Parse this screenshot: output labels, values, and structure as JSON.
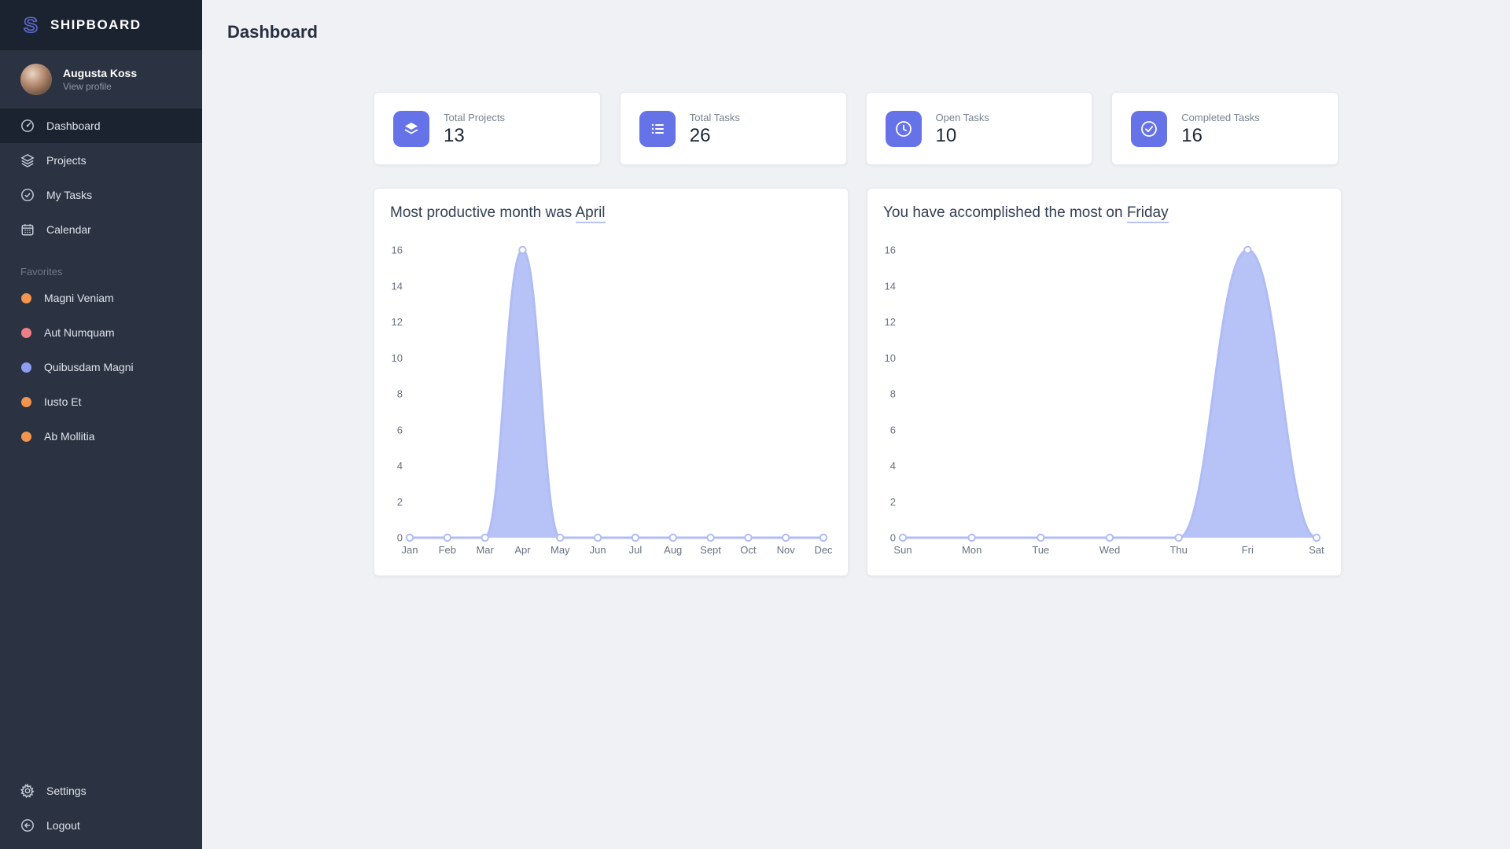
{
  "app": {
    "name": "SHIPBOARD"
  },
  "colors": {
    "accent": "#6673e8",
    "area_fill": "#b7c2f6",
    "area_line": "#b0bcf4",
    "sidebar_bg": "#2b3342",
    "sidebar_dark": "#1c2330"
  },
  "sidebar": {
    "user": {
      "name": "Augusta Koss",
      "action": "View profile"
    },
    "nav": [
      {
        "label": "Dashboard",
        "icon": "dashboard-icon",
        "active": true
      },
      {
        "label": "Projects",
        "icon": "layers-icon",
        "active": false
      },
      {
        "label": "My Tasks",
        "icon": "check-circle-icon",
        "active": false
      },
      {
        "label": "Calendar",
        "icon": "calendar-icon",
        "active": false
      }
    ],
    "favorites": {
      "heading": "Favorites",
      "items": [
        {
          "label": "Magni Veniam",
          "color": "#f2964e"
        },
        {
          "label": "Aut Numquam",
          "color": "#ef7f86"
        },
        {
          "label": "Quibusdam Magni",
          "color": "#8d9df6"
        },
        {
          "label": "Iusto Et",
          "color": "#f2964e"
        },
        {
          "label": "Ab Mollitia",
          "color": "#f2964e"
        }
      ]
    },
    "footer": [
      {
        "label": "Settings",
        "icon": "gear-icon"
      },
      {
        "label": "Logout",
        "icon": "logout-icon"
      }
    ]
  },
  "page": {
    "title": "Dashboard"
  },
  "stats": [
    {
      "label": "Total Projects",
      "value": "13",
      "icon": "layers-icon"
    },
    {
      "label": "Total Tasks",
      "value": "26",
      "icon": "list-icon"
    },
    {
      "label": "Open Tasks",
      "value": "10",
      "icon": "clock-icon"
    },
    {
      "label": "Completed Tasks",
      "value": "16",
      "icon": "check-circle-icon"
    }
  ],
  "chart_data": [
    {
      "type": "area",
      "title_prefix": "Most productive month was ",
      "highlight": "April",
      "categories": [
        "Jan",
        "Feb",
        "Mar",
        "Apr",
        "May",
        "Jun",
        "Jul",
        "Aug",
        "Sept",
        "Oct",
        "Nov",
        "Dec"
      ],
      "values": [
        0,
        0,
        0,
        16,
        0,
        0,
        0,
        0,
        0,
        0,
        0,
        0
      ],
      "xlabel": "",
      "ylabel": "",
      "ylim": [
        0,
        16
      ],
      "ytick_step": 2,
      "grid": false,
      "legend": false,
      "fill_color": "#b7c2f6",
      "line_color": "#b0bcf4"
    },
    {
      "type": "area",
      "title_prefix": "You have accomplished the most on ",
      "highlight": "Friday",
      "categories": [
        "Sun",
        "Mon",
        "Tue",
        "Wed",
        "Thu",
        "Fri",
        "Sat"
      ],
      "values": [
        0,
        0,
        0,
        0,
        0,
        16,
        0
      ],
      "xlabel": "",
      "ylabel": "",
      "ylim": [
        0,
        16
      ],
      "ytick_step": 2,
      "grid": false,
      "legend": false,
      "fill_color": "#b7c2f6",
      "line_color": "#b0bcf4"
    }
  ]
}
